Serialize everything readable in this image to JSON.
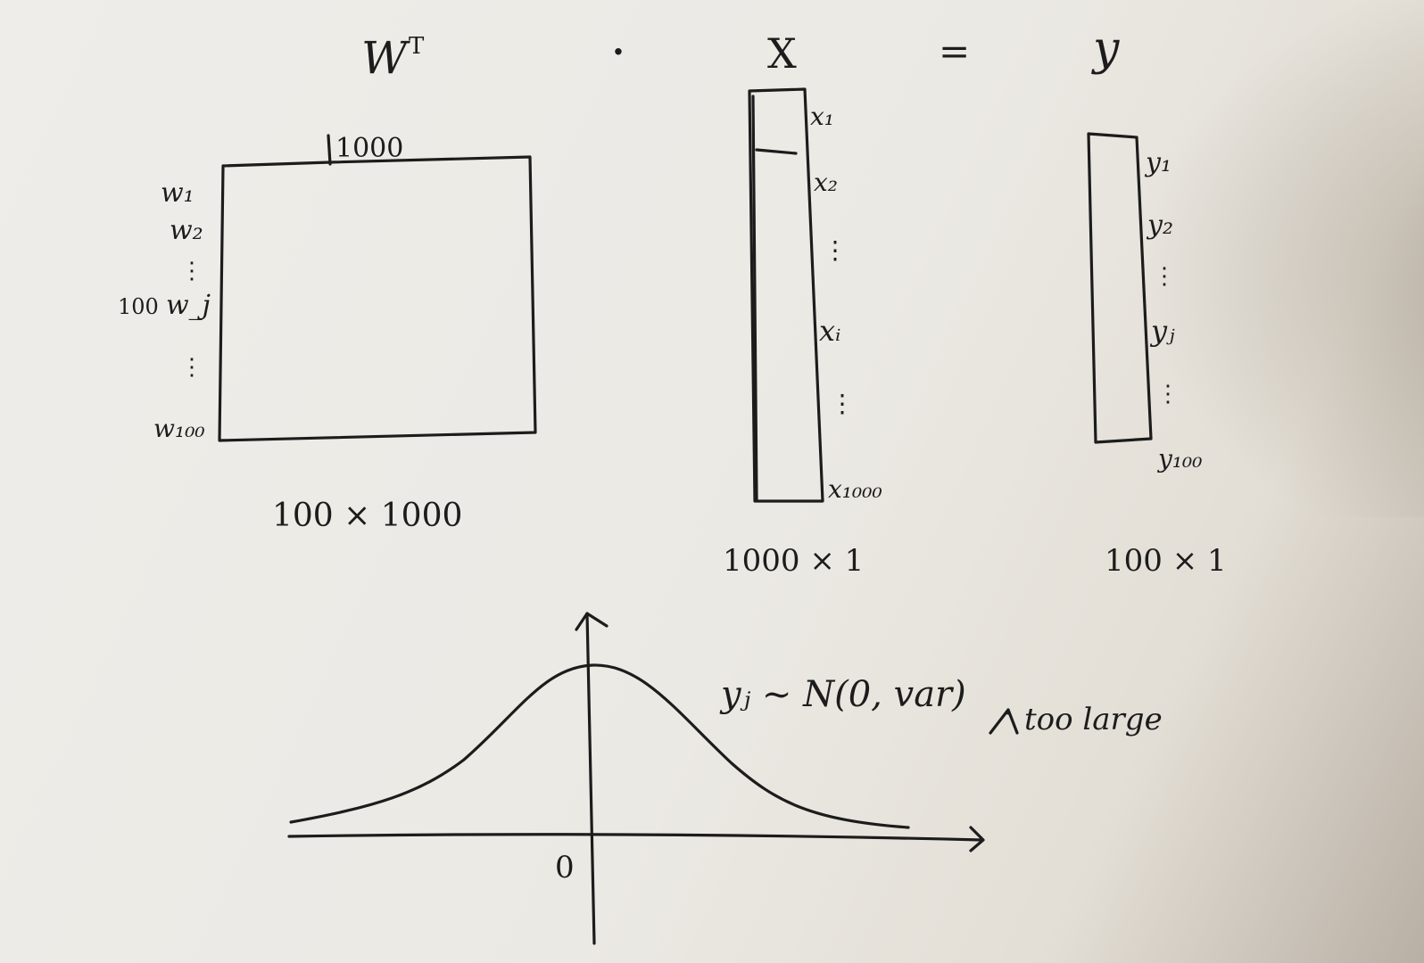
{
  "equation": {
    "wt": "W",
    "wt_sup": "T",
    "dot": "·",
    "x": "X",
    "equals": "=",
    "y": "y"
  },
  "matrix_w": {
    "top_label": "1000",
    "rows": [
      "w₁",
      "w₂",
      "⋮",
      "w_j",
      "⋮",
      "w₁₀₀"
    ],
    "row_side_label": "100",
    "size": "100 × 1000"
  },
  "vector_x": {
    "rows": [
      "x₁",
      "x₂",
      "⋮",
      "xᵢ",
      "⋮",
      "x₁₀₀₀"
    ],
    "size": "1000 × 1"
  },
  "vector_y": {
    "rows": [
      "y₁",
      "y₂",
      "⋮",
      "yⱼ",
      "⋮",
      "y₁₀₀"
    ],
    "size": "100 × 1"
  },
  "distribution": {
    "formula": "yⱼ ~ N(0, var)",
    "note": "too large",
    "origin": "0"
  }
}
